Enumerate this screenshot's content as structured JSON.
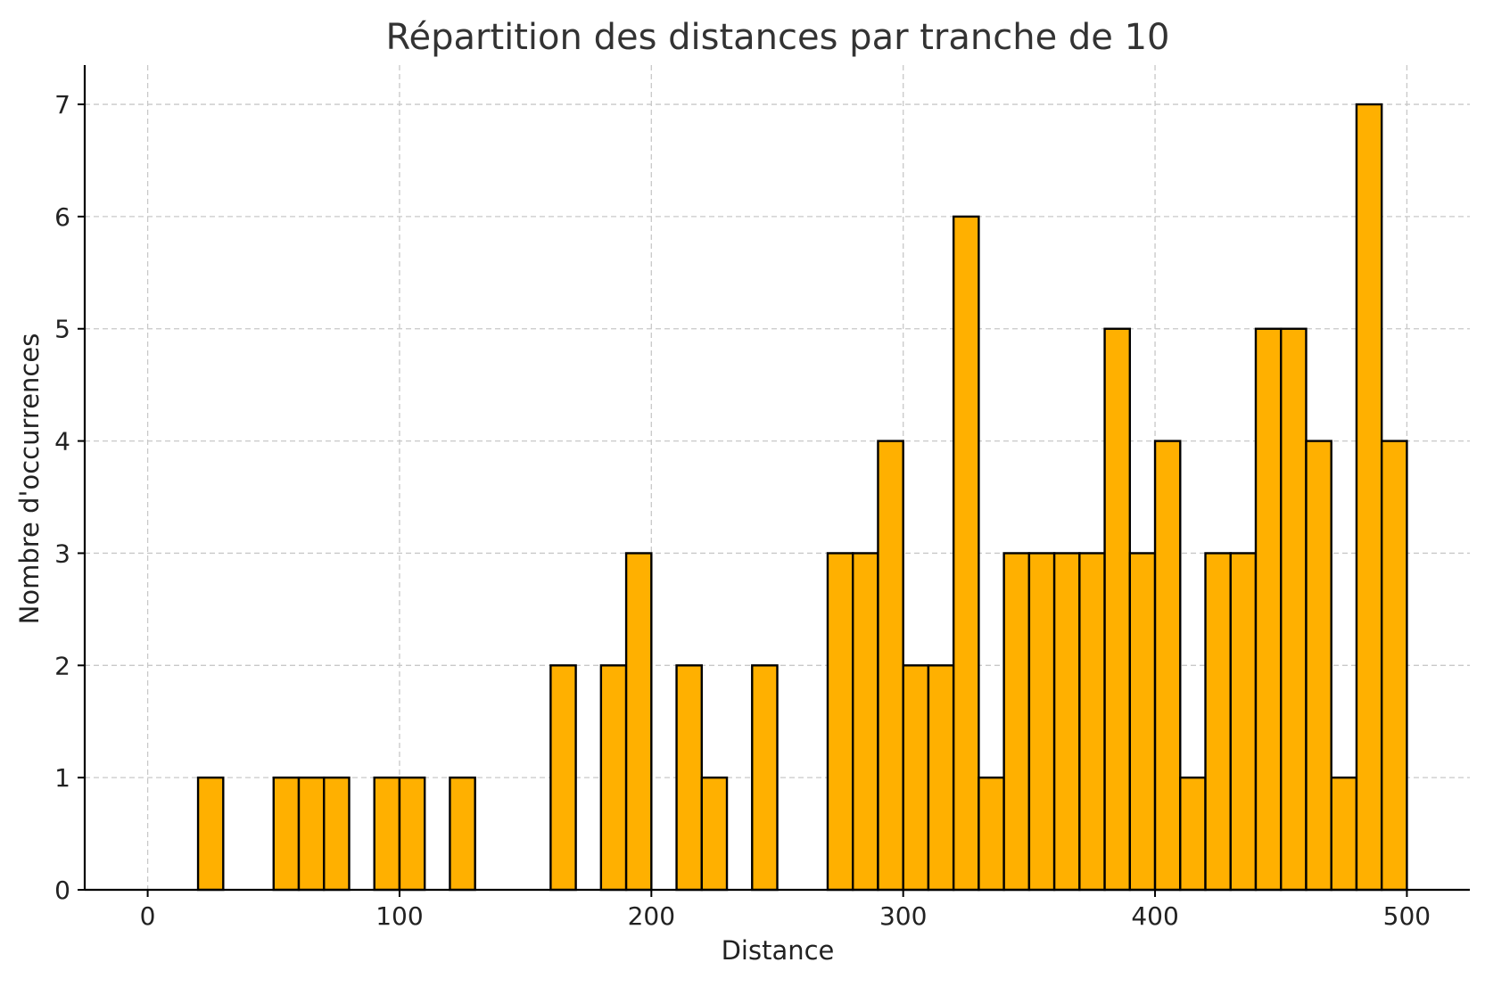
{
  "chart_data": {
    "type": "bar",
    "title": "Répartition des distances par tranche de 10",
    "xlabel": "Distance",
    "ylabel": "Nombre d'occurrences",
    "xlim": [
      -25,
      525
    ],
    "ylim": [
      0,
      7.35
    ],
    "xticks": [
      0,
      100,
      200,
      300,
      400,
      500
    ],
    "yticks": [
      0,
      1,
      2,
      3,
      4,
      5,
      6,
      7
    ],
    "grid": true,
    "bin_width": 10,
    "bins": [
      {
        "start": 20,
        "end": 30,
        "count": 1
      },
      {
        "start": 50,
        "end": 60,
        "count": 1
      },
      {
        "start": 60,
        "end": 70,
        "count": 1
      },
      {
        "start": 70,
        "end": 80,
        "count": 1
      },
      {
        "start": 90,
        "end": 100,
        "count": 1
      },
      {
        "start": 100,
        "end": 110,
        "count": 1
      },
      {
        "start": 120,
        "end": 130,
        "count": 1
      },
      {
        "start": 160,
        "end": 170,
        "count": 2
      },
      {
        "start": 180,
        "end": 190,
        "count": 2
      },
      {
        "start": 190,
        "end": 200,
        "count": 3
      },
      {
        "start": 210,
        "end": 220,
        "count": 2
      },
      {
        "start": 220,
        "end": 230,
        "count": 1
      },
      {
        "start": 240,
        "end": 250,
        "count": 2
      },
      {
        "start": 270,
        "end": 280,
        "count": 3
      },
      {
        "start": 280,
        "end": 290,
        "count": 3
      },
      {
        "start": 290,
        "end": 300,
        "count": 4
      },
      {
        "start": 300,
        "end": 310,
        "count": 2
      },
      {
        "start": 310,
        "end": 320,
        "count": 2
      },
      {
        "start": 320,
        "end": 330,
        "count": 6
      },
      {
        "start": 330,
        "end": 340,
        "count": 1
      },
      {
        "start": 340,
        "end": 350,
        "count": 3
      },
      {
        "start": 350,
        "end": 360,
        "count": 3
      },
      {
        "start": 360,
        "end": 370,
        "count": 3
      },
      {
        "start": 370,
        "end": 380,
        "count": 3
      },
      {
        "start": 380,
        "end": 390,
        "count": 5
      },
      {
        "start": 390,
        "end": 400,
        "count": 3
      },
      {
        "start": 400,
        "end": 410,
        "count": 4
      },
      {
        "start": 410,
        "end": 420,
        "count": 1
      },
      {
        "start": 420,
        "end": 430,
        "count": 3
      },
      {
        "start": 430,
        "end": 440,
        "count": 3
      },
      {
        "start": 440,
        "end": 450,
        "count": 5
      },
      {
        "start": 450,
        "end": 460,
        "count": 5
      },
      {
        "start": 460,
        "end": 470,
        "count": 4
      },
      {
        "start": 470,
        "end": 480,
        "count": 1
      },
      {
        "start": 480,
        "end": 490,
        "count": 7
      },
      {
        "start": 490,
        "end": 500,
        "count": 4
      }
    ]
  },
  "colors": {
    "bar_fill": "#FFB000",
    "bar_edge": "#000000",
    "grid": "#c8c8c8",
    "axis": "#000000",
    "title": "#333333"
  }
}
